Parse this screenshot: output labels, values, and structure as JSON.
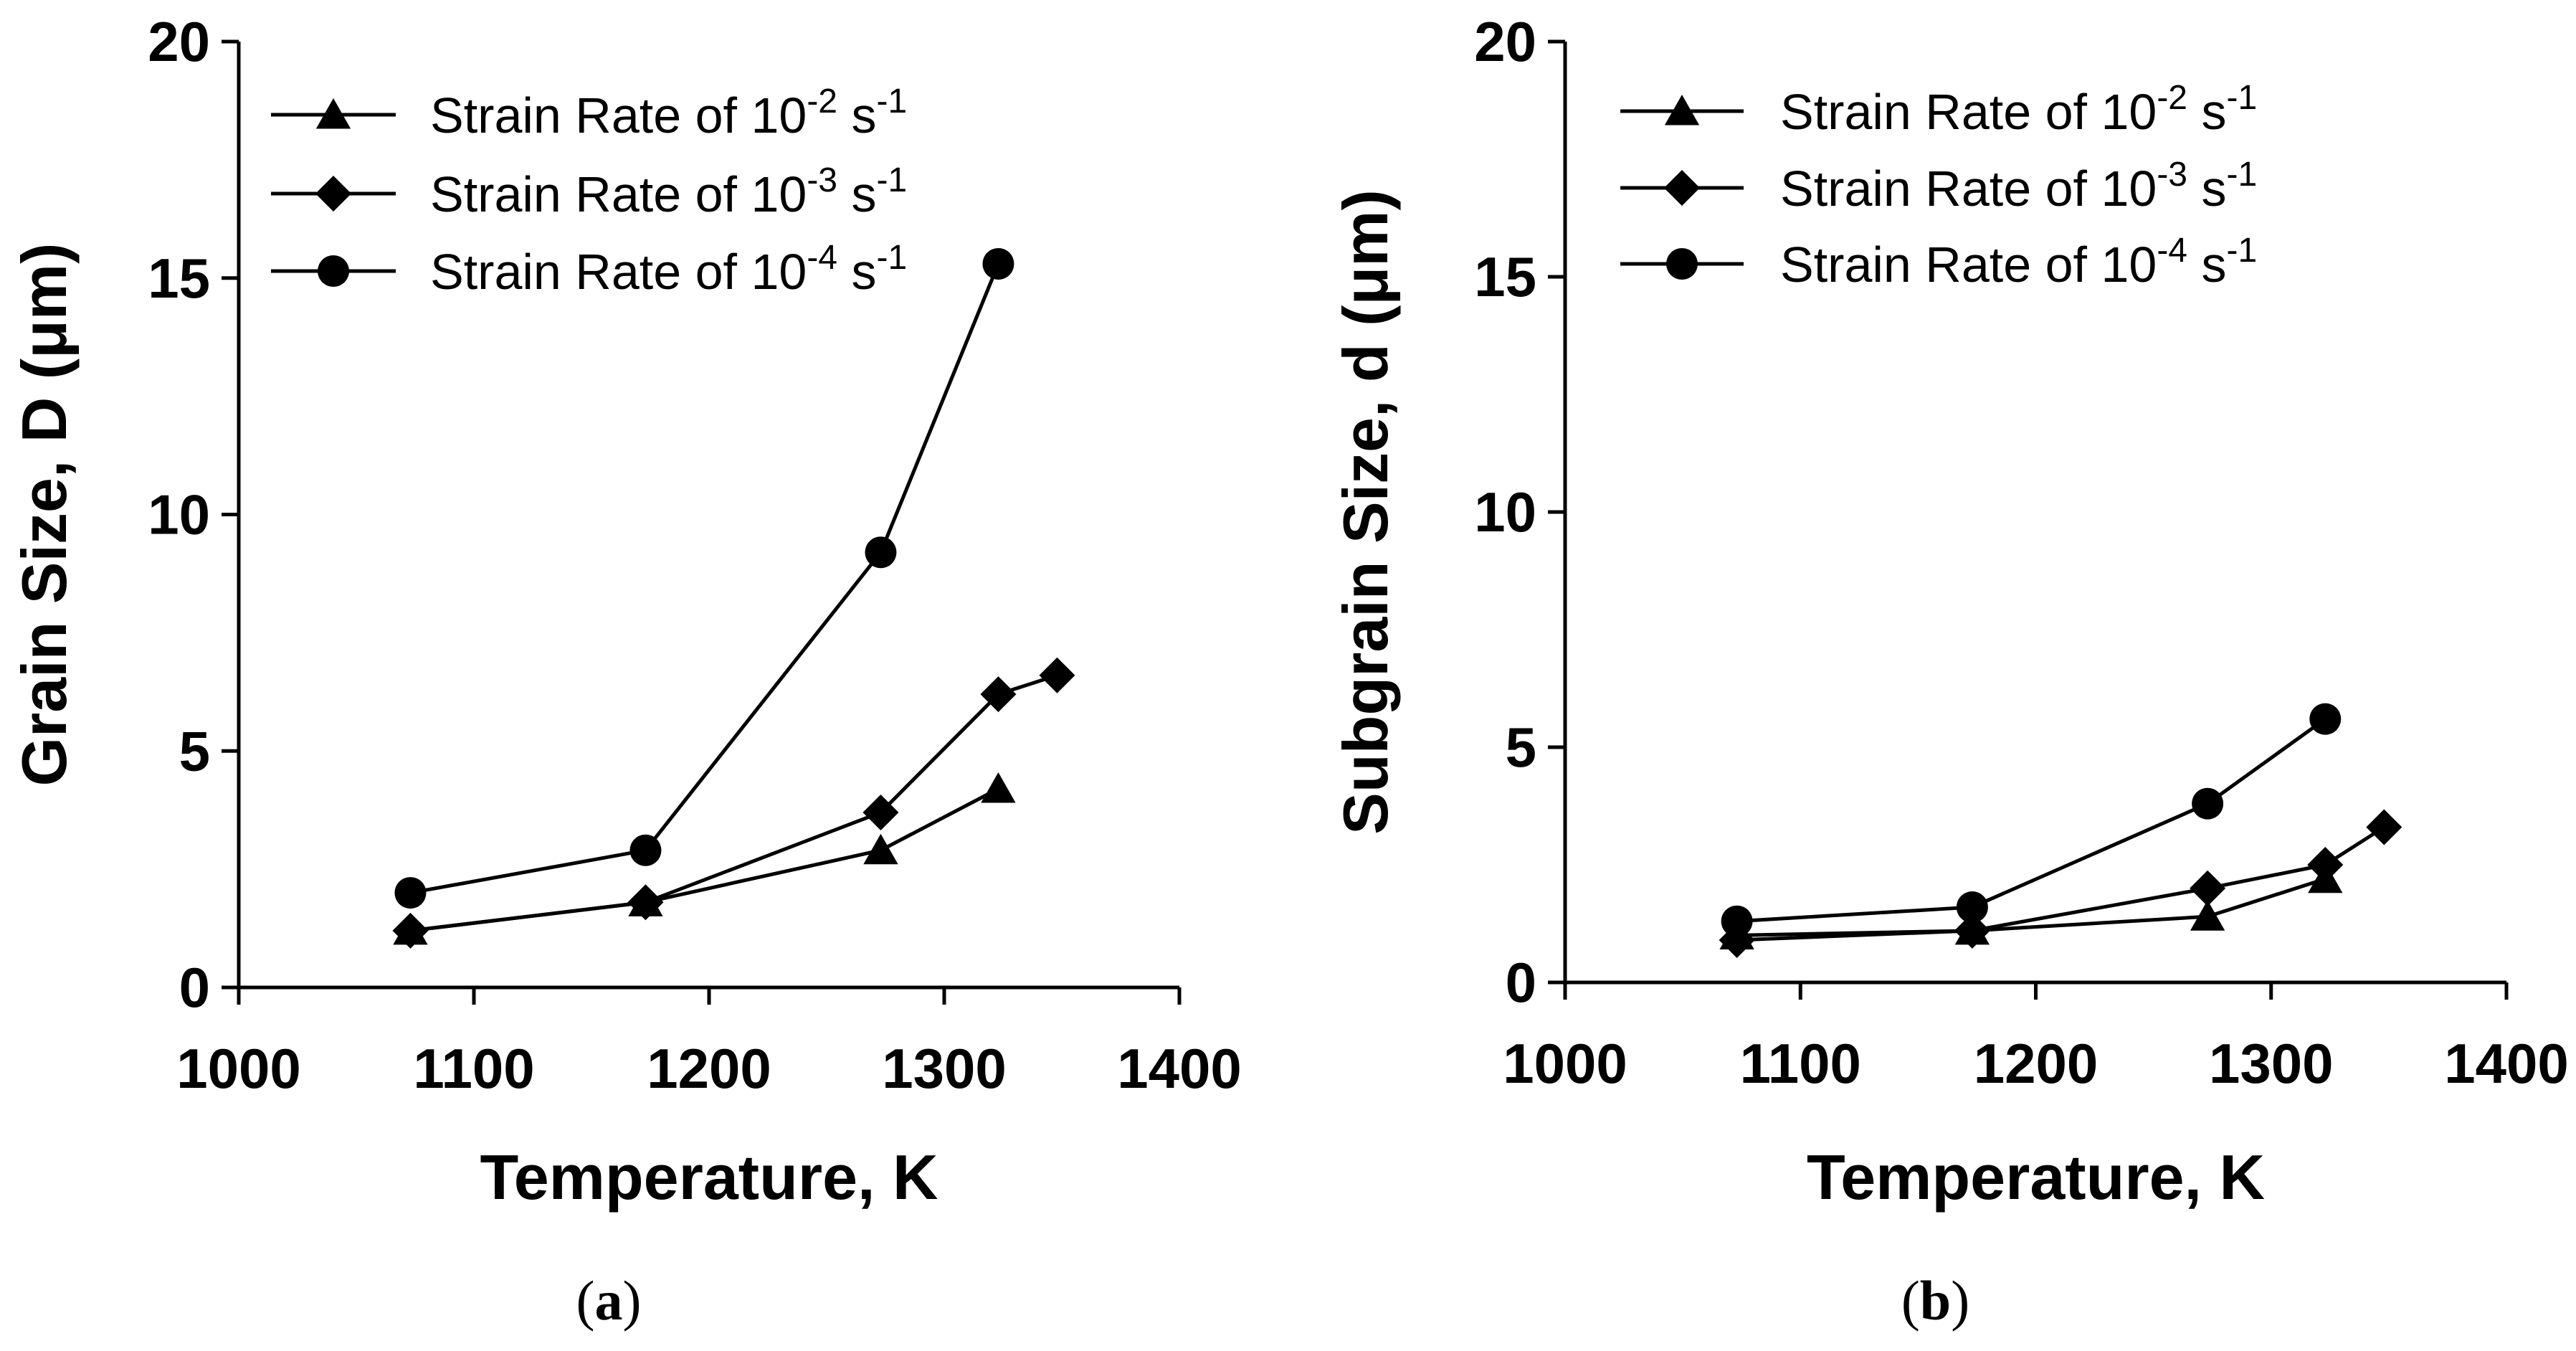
{
  "chart_data": [
    {
      "panel": "a",
      "type": "line",
      "caption": "a",
      "xlabel": "Temperature, K",
      "ylabel": "Grain Size, D (μm)",
      "xlim": [
        1000,
        1400
      ],
      "ylim": [
        0,
        20
      ],
      "xticks": [
        1000,
        1100,
        1200,
        1300,
        1400
      ],
      "yticks": [
        0,
        5,
        10,
        15,
        20
      ],
      "legend_position": "top-left",
      "series": [
        {
          "name": "Strain Rate of 10-2 s-1",
          "label_base": "Strain Rate of 10",
          "exp": "-2",
          "unit": "s",
          "unit_exp": "-1",
          "marker": "triangle",
          "x": [
            1073,
            1173,
            1273,
            1323
          ],
          "y": [
            1.2,
            1.8,
            2.9,
            4.2
          ]
        },
        {
          "name": "Strain Rate of 10-3 s-1",
          "label_base": "Strain Rate of 10",
          "exp": "-3",
          "unit": "s",
          "unit_exp": "-1",
          "marker": "diamond",
          "x": [
            1073,
            1173,
            1273,
            1323,
            1348
          ],
          "y": [
            1.2,
            1.8,
            3.7,
            6.2,
            6.6
          ]
        },
        {
          "name": "Strain Rate of 10-4 s-1",
          "label_base": "Strain Rate of 10",
          "exp": "-4",
          "unit": "s",
          "unit_exp": "-1",
          "marker": "circle",
          "x": [
            1073,
            1173,
            1273,
            1323
          ],
          "y": [
            2.0,
            2.9,
            9.2,
            15.3
          ]
        }
      ]
    },
    {
      "panel": "b",
      "type": "line",
      "caption": "b",
      "xlabel": "Temperature, K",
      "ylabel": "Subgrain Size, d (μm)",
      "xlim": [
        1000,
        1400
      ],
      "ylim": [
        0,
        20
      ],
      "xticks": [
        1000,
        1100,
        1200,
        1300,
        1400
      ],
      "yticks": [
        0,
        5,
        10,
        15,
        20
      ],
      "legend_position": "top-left",
      "series": [
        {
          "name": "Strain Rate of 10-2 s-1",
          "label_base": "Strain Rate of 10",
          "exp": "-2",
          "unit": "s",
          "unit_exp": "-1",
          "marker": "triangle",
          "x": [
            1073,
            1173,
            1273,
            1323
          ],
          "y": [
            1.0,
            1.1,
            1.4,
            2.2
          ]
        },
        {
          "name": "Strain Rate of 10-3 s-1",
          "label_base": "Strain Rate of 10",
          "exp": "-3",
          "unit": "s",
          "unit_exp": "-1",
          "marker": "diamond",
          "x": [
            1073,
            1173,
            1273,
            1323,
            1348
          ],
          "y": [
            0.9,
            1.1,
            2.0,
            2.5,
            3.3
          ]
        },
        {
          "name": "Strain Rate of 10-4 s-1",
          "label_base": "Strain Rate of 10",
          "exp": "-4",
          "unit": "s",
          "unit_exp": "-1",
          "marker": "circle",
          "x": [
            1073,
            1173,
            1273,
            1323
          ],
          "y": [
            1.3,
            1.6,
            3.8,
            5.6
          ]
        }
      ]
    }
  ]
}
